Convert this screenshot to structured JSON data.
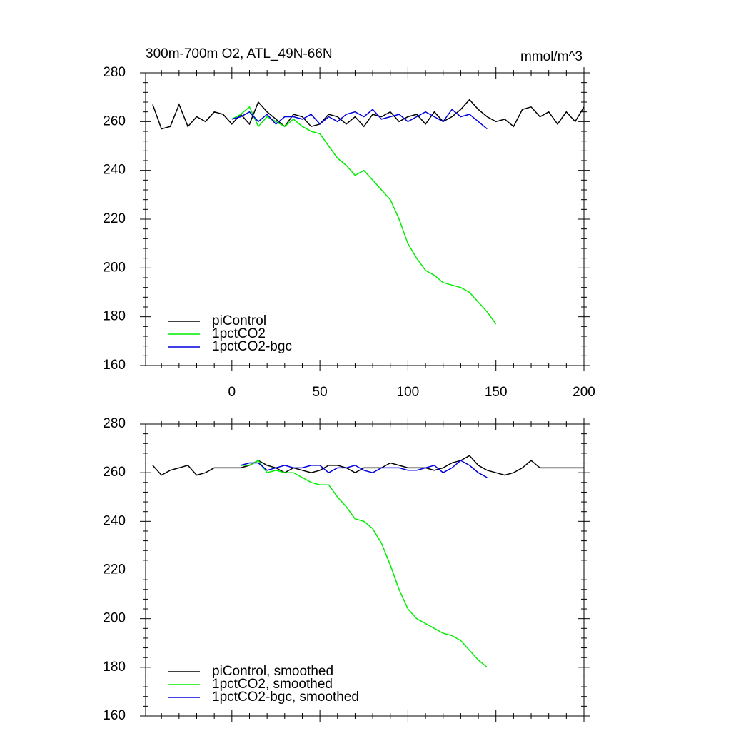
{
  "chart_data": [
    {
      "type": "line",
      "title": "300m-700m O2, ATL_49N-66N",
      "units": "mmol/m^3",
      "xlim": [
        -49,
        200
      ],
      "ylim": [
        160,
        280
      ],
      "xticks": [
        0,
        50,
        100,
        150,
        200
      ],
      "yticks": [
        160,
        180,
        200,
        220,
        240,
        260,
        280
      ],
      "x": [
        -45,
        -40,
        -35,
        -30,
        -25,
        -20,
        -15,
        -10,
        -5,
        0,
        5,
        10,
        15,
        20,
        25,
        30,
        35,
        40,
        45,
        50,
        55,
        60,
        65,
        70,
        75,
        80,
        85,
        90,
        95,
        100,
        105,
        110,
        115,
        120,
        125,
        130,
        135,
        140,
        145,
        150,
        155,
        160,
        165,
        170,
        175,
        180,
        185,
        190,
        195,
        200
      ],
      "series": [
        {
          "name": "piControl",
          "color": "#000000",
          "values": [
            267,
            257,
            258,
            267,
            258,
            262,
            260,
            264,
            263,
            259,
            263,
            259,
            268,
            264,
            261,
            258,
            263,
            262,
            258,
            259,
            263,
            262,
            259,
            262,
            258,
            263,
            262,
            264,
            260,
            262,
            263,
            259,
            264,
            260,
            262,
            265,
            269,
            265,
            262,
            260,
            261,
            258,
            265,
            266,
            262,
            264,
            259,
            264,
            260,
            266
          ]
        },
        {
          "name": "1pctCO2",
          "color": "#00ee00",
          "values": [
            null,
            null,
            null,
            null,
            null,
            null,
            null,
            null,
            null,
            261,
            263,
            266,
            258,
            262,
            260,
            258,
            261,
            258,
            256,
            255,
            250,
            245,
            242,
            238,
            240,
            236,
            232,
            228,
            220,
            210,
            204,
            199,
            197,
            194,
            193,
            192,
            190,
            186,
            182,
            177,
            null,
            null,
            null,
            null,
            null,
            null,
            null,
            null,
            null,
            null
          ]
        },
        {
          "name": "1pctCO2-bgc",
          "color": "#0000dd",
          "values": [
            null,
            null,
            null,
            null,
            null,
            null,
            null,
            null,
            null,
            261,
            262,
            264,
            260,
            263,
            259,
            262,
            262,
            261,
            263,
            259,
            262,
            260,
            263,
            264,
            262,
            265,
            261,
            262,
            263,
            260,
            262,
            264,
            262,
            260,
            265,
            262,
            263,
            260,
            257,
            null,
            null,
            null,
            null,
            null,
            null,
            null,
            null,
            null,
            null,
            null
          ]
        }
      ]
    },
    {
      "type": "line",
      "xlim": [
        -49,
        200
      ],
      "ylim": [
        160,
        280
      ],
      "yticks": [
        160,
        180,
        200,
        220,
        240,
        260,
        280
      ],
      "x": [
        -45,
        -40,
        -35,
        -30,
        -25,
        -20,
        -15,
        -10,
        -5,
        0,
        5,
        10,
        15,
        20,
        25,
        30,
        35,
        40,
        45,
        50,
        55,
        60,
        65,
        70,
        75,
        80,
        85,
        90,
        95,
        100,
        105,
        110,
        115,
        120,
        125,
        130,
        135,
        140,
        145,
        150,
        155,
        160,
        165,
        170,
        175,
        180,
        185,
        190,
        195,
        200
      ],
      "series": [
        {
          "name": "piControl, smoothed",
          "color": "#000000",
          "values": [
            263,
            259,
            261,
            262,
            263,
            259,
            260,
            262,
            262,
            262,
            262,
            263,
            265,
            263,
            262,
            260,
            262,
            261,
            260,
            261,
            263,
            263,
            262,
            260,
            262,
            262,
            262,
            264,
            263,
            262,
            262,
            262,
            261,
            262,
            264,
            265,
            267,
            263,
            261,
            260,
            259,
            260,
            262,
            265,
            262,
            262,
            262,
            262,
            262,
            262
          ]
        },
        {
          "name": "1pctCO2, smoothed",
          "color": "#00ee00",
          "values": [
            null,
            null,
            null,
            null,
            null,
            null,
            null,
            null,
            null,
            null,
            263,
            263,
            265,
            260,
            261,
            260,
            260,
            258,
            256,
            255,
            255,
            250,
            246,
            241,
            240,
            237,
            231,
            222,
            212,
            204,
            200,
            198,
            196,
            194,
            193,
            191,
            187,
            183,
            180,
            null,
            null,
            null,
            null,
            null,
            null,
            null,
            null,
            null,
            null,
            null
          ]
        },
        {
          "name": "1pctCO2-bgc, smoothed",
          "color": "#0000dd",
          "values": [
            null,
            null,
            null,
            null,
            null,
            null,
            null,
            null,
            null,
            null,
            263,
            264,
            264,
            261,
            262,
            263,
            262,
            262,
            263,
            263,
            260,
            262,
            262,
            263,
            261,
            260,
            262,
            262,
            262,
            261,
            261,
            262,
            263,
            260,
            262,
            265,
            263,
            260,
            258,
            null,
            null,
            null,
            null,
            null,
            null,
            null,
            null,
            null,
            null,
            null
          ]
        }
      ]
    }
  ]
}
